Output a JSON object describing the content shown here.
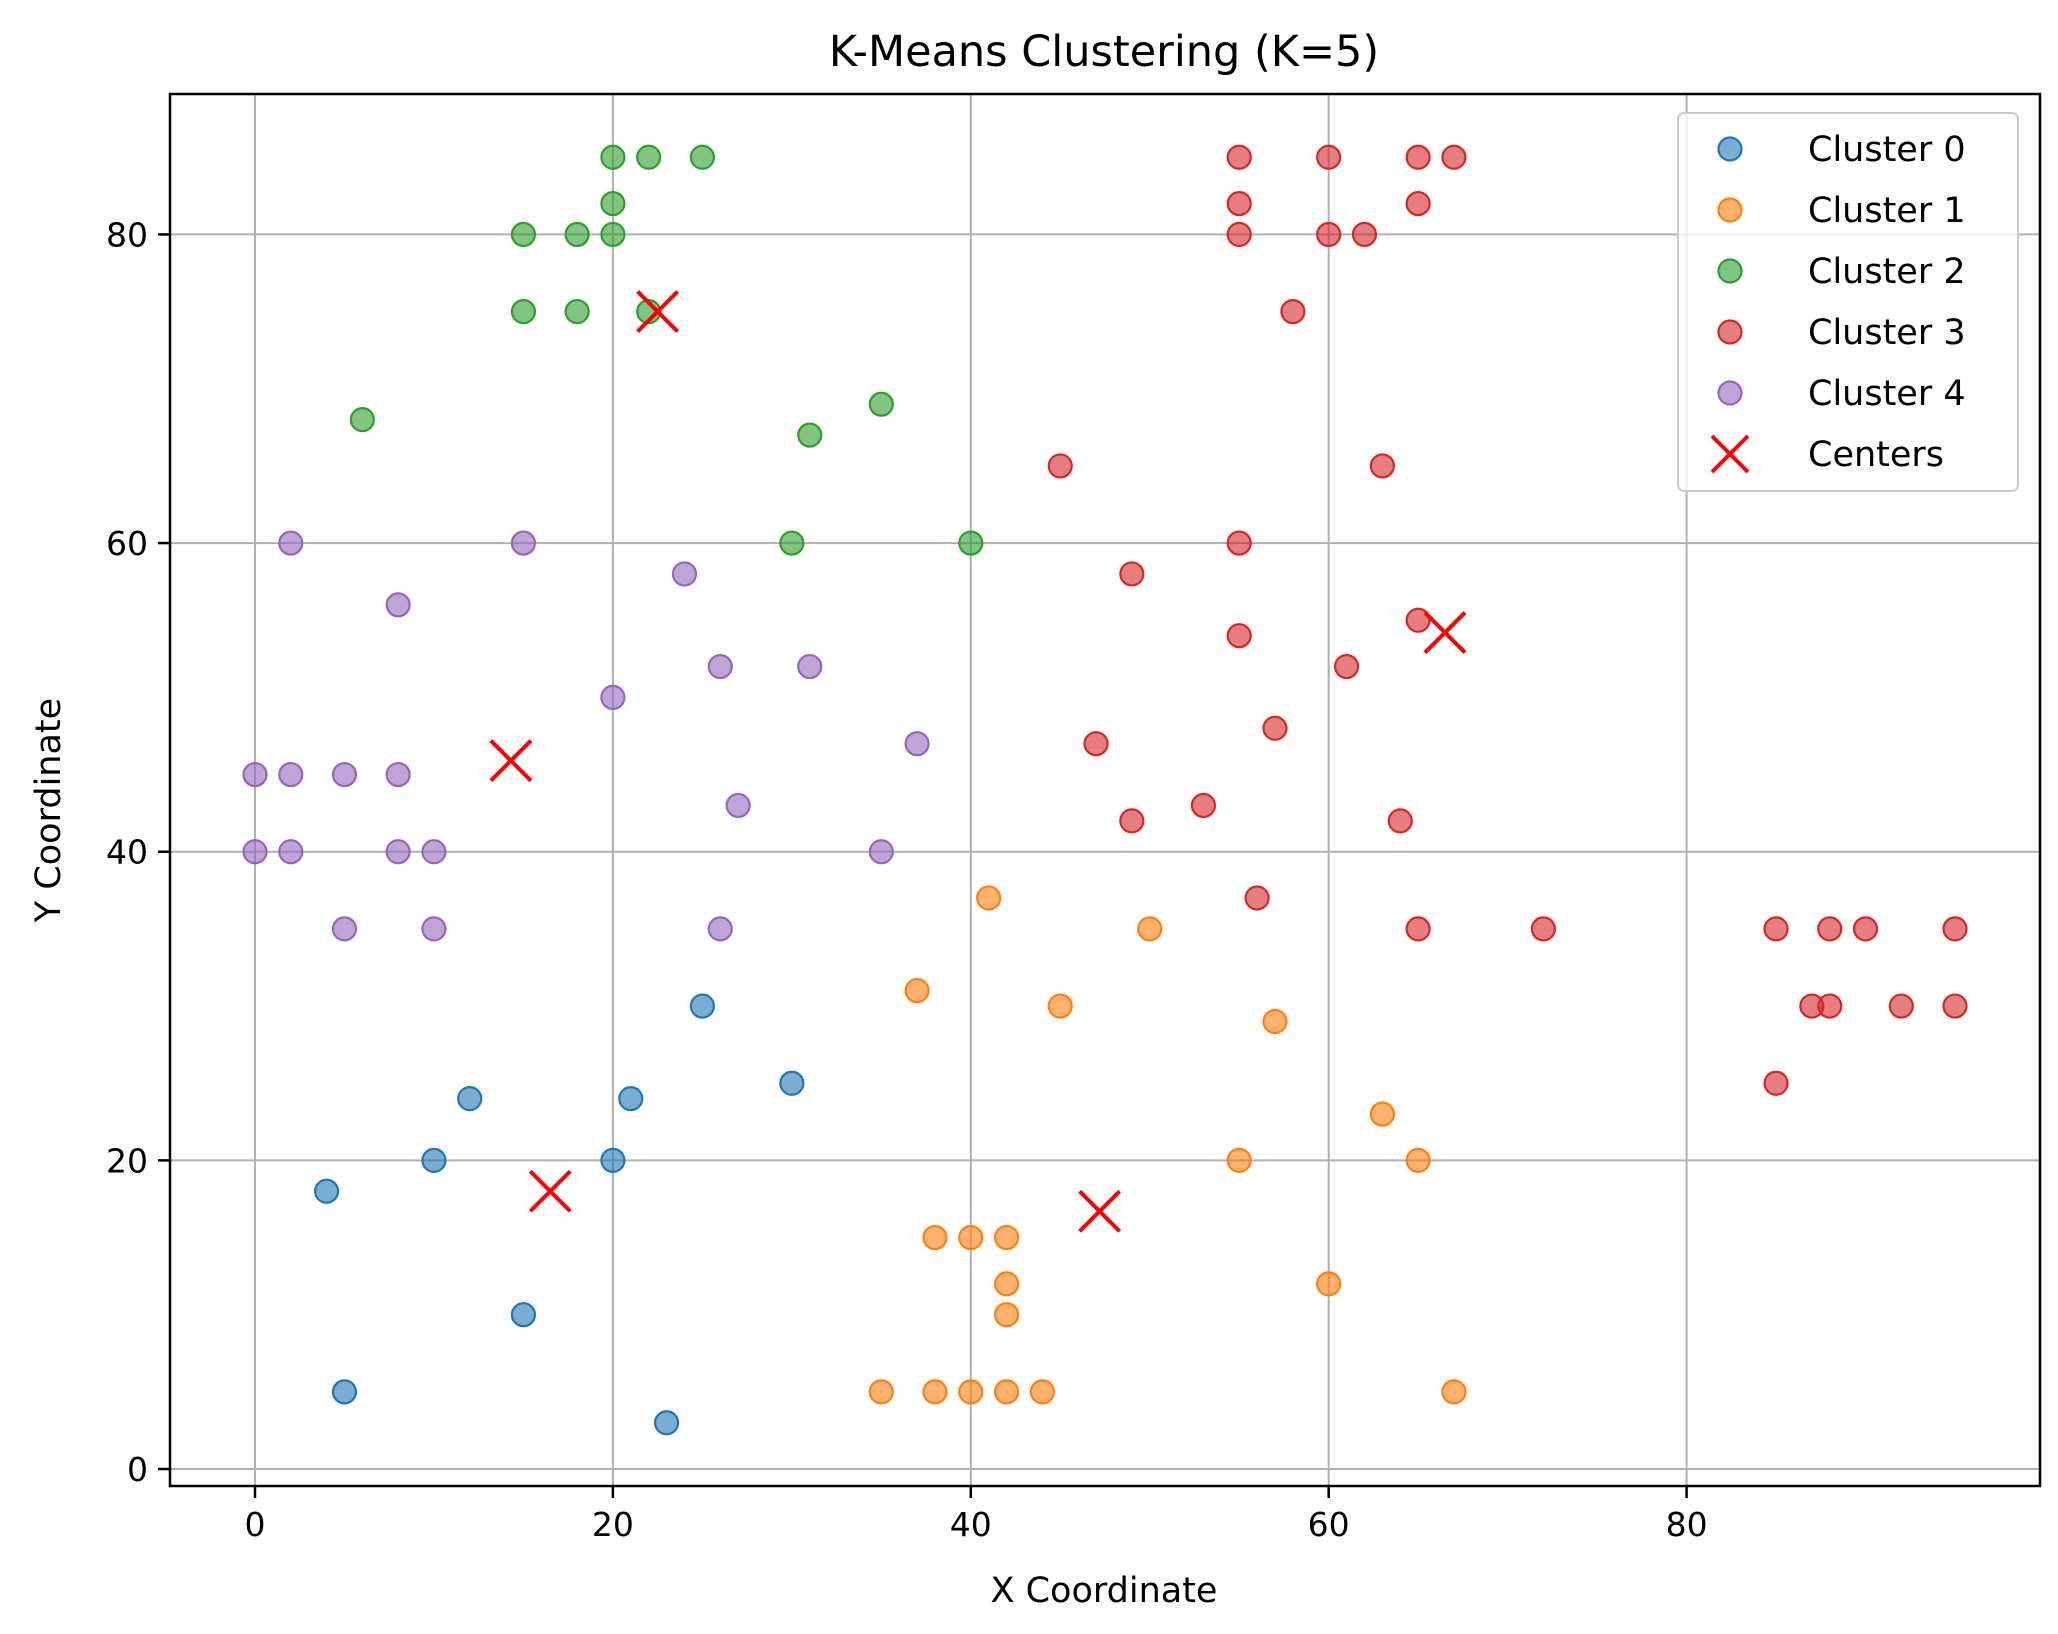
{
  "chart_data": {
    "type": "scatter",
    "title": "K-Means Clustering (K=5)",
    "xlabel": "X Coordinate",
    "ylabel": "Y Coordinate",
    "xlim": [
      -4.75,
      99.75
    ],
    "ylim": [
      -1.1,
      89.1
    ],
    "xticks": [
      0,
      20,
      40,
      60,
      80
    ],
    "yticks": [
      0,
      20,
      40,
      60,
      80
    ],
    "grid": true,
    "legend_position": "top-right",
    "series": [
      {
        "name": "Cluster 0",
        "color": "#1f77b4",
        "marker": "circle",
        "points": [
          [
            4,
            18
          ],
          [
            5,
            5
          ],
          [
            10,
            20
          ],
          [
            12,
            24
          ],
          [
            15,
            10
          ],
          [
            20,
            20
          ],
          [
            21,
            24
          ],
          [
            23,
            3
          ],
          [
            25,
            30
          ],
          [
            30,
            25
          ]
        ]
      },
      {
        "name": "Cluster 1",
        "color": "#ff7f0e",
        "marker": "circle",
        "points": [
          [
            35,
            5
          ],
          [
            37,
            31
          ],
          [
            38,
            15
          ],
          [
            38,
            5
          ],
          [
            40,
            15
          ],
          [
            40,
            5
          ],
          [
            41,
            37
          ],
          [
            42,
            15
          ],
          [
            42,
            12
          ],
          [
            42,
            10
          ],
          [
            42,
            5
          ],
          [
            44,
            5
          ],
          [
            45,
            30
          ],
          [
            50,
            35
          ],
          [
            55,
            20
          ],
          [
            57,
            29
          ],
          [
            60,
            12
          ],
          [
            63,
            23
          ],
          [
            65,
            20
          ],
          [
            67,
            5
          ]
        ]
      },
      {
        "name": "Cluster 2",
        "color": "#2ca02c",
        "marker": "circle",
        "points": [
          [
            6,
            68
          ],
          [
            15,
            80
          ],
          [
            15,
            75
          ],
          [
            18,
            80
          ],
          [
            18,
            75
          ],
          [
            20,
            85
          ],
          [
            20,
            82
          ],
          [
            20,
            80
          ],
          [
            22,
            85
          ],
          [
            22,
            75
          ],
          [
            25,
            85
          ],
          [
            30,
            60
          ],
          [
            31,
            67
          ],
          [
            35,
            69
          ],
          [
            40,
            60
          ]
        ]
      },
      {
        "name": "Cluster 3",
        "color": "#d62728",
        "marker": "circle",
        "points": [
          [
            45,
            65
          ],
          [
            47,
            47
          ],
          [
            49,
            58
          ],
          [
            49,
            42
          ],
          [
            53,
            43
          ],
          [
            55,
            85
          ],
          [
            55,
            82
          ],
          [
            55,
            80
          ],
          [
            55,
            60
          ],
          [
            55,
            54
          ],
          [
            56,
            37
          ],
          [
            57,
            48
          ],
          [
            58,
            75
          ],
          [
            60,
            85
          ],
          [
            60,
            80
          ],
          [
            61,
            52
          ],
          [
            62,
            80
          ],
          [
            63,
            65
          ],
          [
            64,
            42
          ],
          [
            65,
            85
          ],
          [
            65,
            82
          ],
          [
            65,
            55
          ],
          [
            65,
            35
          ],
          [
            67,
            85
          ],
          [
            72,
            35
          ],
          [
            85,
            35
          ],
          [
            85,
            25
          ],
          [
            87,
            30
          ],
          [
            88,
            35
          ],
          [
            88,
            30
          ],
          [
            90,
            35
          ],
          [
            92,
            30
          ],
          [
            95,
            35
          ],
          [
            95,
            30
          ]
        ]
      },
      {
        "name": "Cluster 4",
        "color": "#9467bd",
        "marker": "circle",
        "points": [
          [
            0,
            45
          ],
          [
            0,
            40
          ],
          [
            2,
            60
          ],
          [
            2,
            45
          ],
          [
            2,
            40
          ],
          [
            5,
            45
          ],
          [
            5,
            35
          ],
          [
            8,
            56
          ],
          [
            8,
            45
          ],
          [
            8,
            40
          ],
          [
            10,
            40
          ],
          [
            10,
            35
          ],
          [
            15,
            60
          ],
          [
            20,
            50
          ],
          [
            24,
            58
          ],
          [
            26,
            52
          ],
          [
            26,
            35
          ],
          [
            27,
            43
          ],
          [
            31,
            52
          ],
          [
            35,
            40
          ],
          [
            37,
            47
          ]
        ]
      },
      {
        "name": "Centers",
        "color": "#ff0000",
        "marker": "x",
        "points": [
          [
            14.3,
            45.9
          ],
          [
            16.5,
            18.0
          ],
          [
            22.5,
            75.0
          ],
          [
            47.2,
            16.7
          ],
          [
            66.5,
            54.2
          ]
        ]
      }
    ]
  }
}
